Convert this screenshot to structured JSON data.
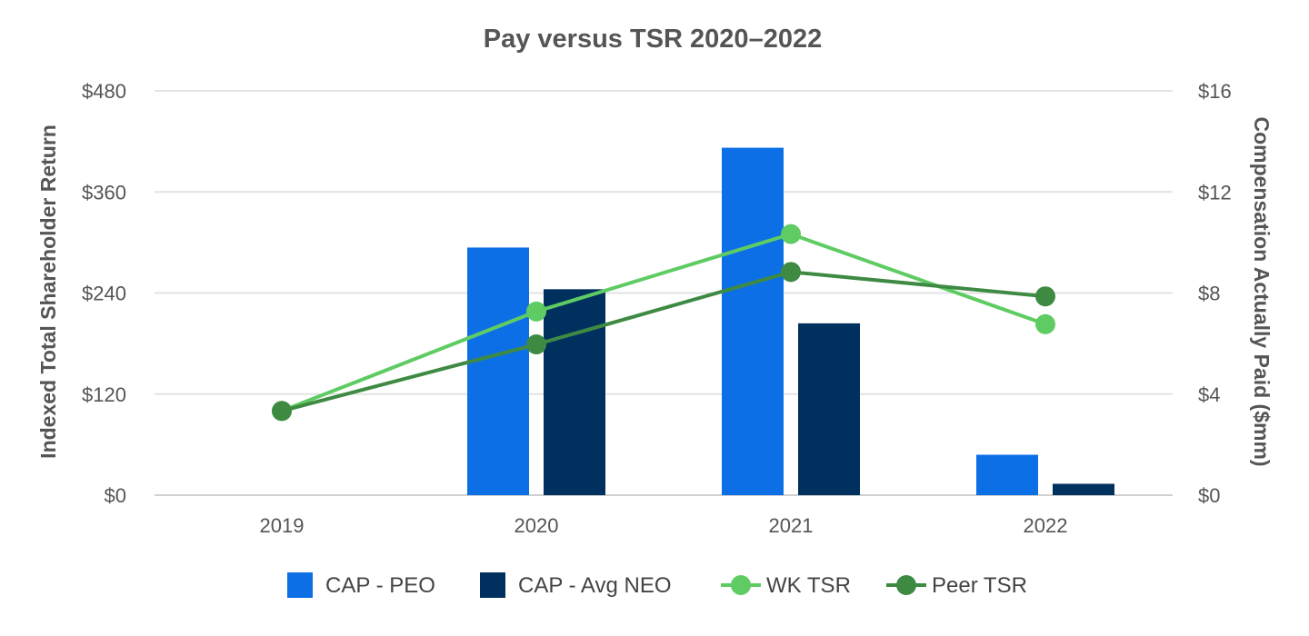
{
  "chart_data": {
    "type": "bar",
    "title": "Pay versus TSR 2020–2022",
    "categories": [
      "2019",
      "2020",
      "2021",
      "2022"
    ],
    "left_axis": {
      "label": "Indexed Total Shareholder Return",
      "range": [
        0,
        480
      ],
      "ticks": [
        0,
        120,
        240,
        360,
        480
      ],
      "tick_labels": [
        "$0",
        "$120",
        "$240",
        "$360",
        "$480"
      ]
    },
    "right_axis": {
      "label": "Compensation Actually Paid ($mm)",
      "range": [
        0,
        16
      ],
      "ticks": [
        0,
        4,
        8,
        12,
        16
      ],
      "tick_labels": [
        "$0",
        "$4",
        "$8",
        "$12",
        "$16"
      ]
    },
    "grid": true,
    "legend_position": "bottom",
    "bar_series": [
      {
        "name": "CAP - PEO",
        "axis": "right",
        "color": "#0d6fe6",
        "values": [
          null,
          9.8,
          13.75,
          1.6
        ]
      },
      {
        "name": "CAP - Avg NEO",
        "axis": "right",
        "color": "#00305e",
        "values": [
          null,
          8.15,
          6.8,
          0.45
        ]
      }
    ],
    "line_series": [
      {
        "name": "WK TSR",
        "axis": "left",
        "color": "#5fcc63",
        "values": [
          100,
          218,
          310,
          203
        ]
      },
      {
        "name": "Peer TSR",
        "axis": "left",
        "color": "#3e8a43",
        "values": [
          100,
          179,
          265,
          236
        ]
      }
    ]
  }
}
